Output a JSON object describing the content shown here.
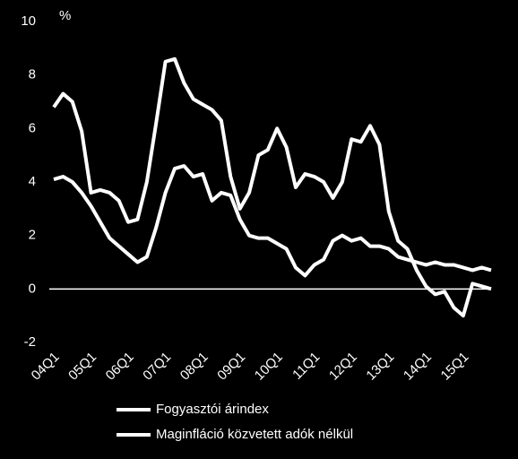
{
  "chart_data": {
    "type": "line",
    "y_unit": "%",
    "categories": [
      "04Q1",
      null,
      null,
      null,
      "05Q1",
      null,
      null,
      null,
      "06Q1",
      null,
      null,
      null,
      "07Q1",
      null,
      null,
      null,
      "08Q1",
      null,
      null,
      null,
      "09Q1",
      null,
      null,
      null,
      "10Q1",
      null,
      null,
      null,
      "11Q1",
      null,
      null,
      null,
      "12Q1",
      null,
      null,
      null,
      "13Q1",
      null,
      null,
      null,
      "14Q1",
      null,
      null,
      null,
      "15Q1",
      null,
      null,
      null
    ],
    "series": [
      {
        "name": "Fogyasztói árindex",
        "color": "#ffffff",
        "values": [
          6.8,
          7.3,
          7.0,
          5.9,
          3.6,
          3.7,
          3.6,
          3.3,
          2.5,
          2.6,
          4.0,
          6.2,
          8.5,
          8.6,
          7.7,
          7.1,
          6.9,
          6.7,
          6.3,
          4.2,
          3.0,
          3.6,
          5.0,
          5.2,
          6.0,
          5.3,
          3.8,
          4.3,
          4.2,
          4.0,
          3.4,
          4.0,
          5.6,
          5.5,
          6.1,
          5.4,
          2.9,
          1.8,
          1.5,
          0.7,
          0.1,
          -0.2,
          -0.1,
          -0.7,
          -1.0,
          0.2,
          0.1,
          0.0
        ]
      },
      {
        "name": "Maginfláció közvetett adók nélkül",
        "color": "#ffffff",
        "values": [
          4.1,
          4.2,
          4.0,
          3.6,
          3.1,
          2.5,
          1.9,
          1.6,
          1.3,
          1.0,
          1.2,
          2.3,
          3.6,
          4.5,
          4.6,
          4.2,
          4.3,
          3.3,
          3.6,
          3.5,
          2.6,
          2.0,
          1.9,
          1.9,
          1.7,
          1.5,
          0.8,
          0.5,
          0.9,
          1.1,
          1.8,
          2.0,
          1.8,
          1.9,
          1.6,
          1.6,
          1.5,
          1.2,
          1.1,
          1.0,
          0.9,
          1.0,
          0.9,
          0.9,
          0.8,
          0.7,
          0.8,
          0.7
        ]
      }
    ],
    "ylim": [
      -2,
      10
    ],
    "yticks": [
      -2,
      0,
      2,
      4,
      6,
      8,
      10
    ],
    "grid": false
  }
}
